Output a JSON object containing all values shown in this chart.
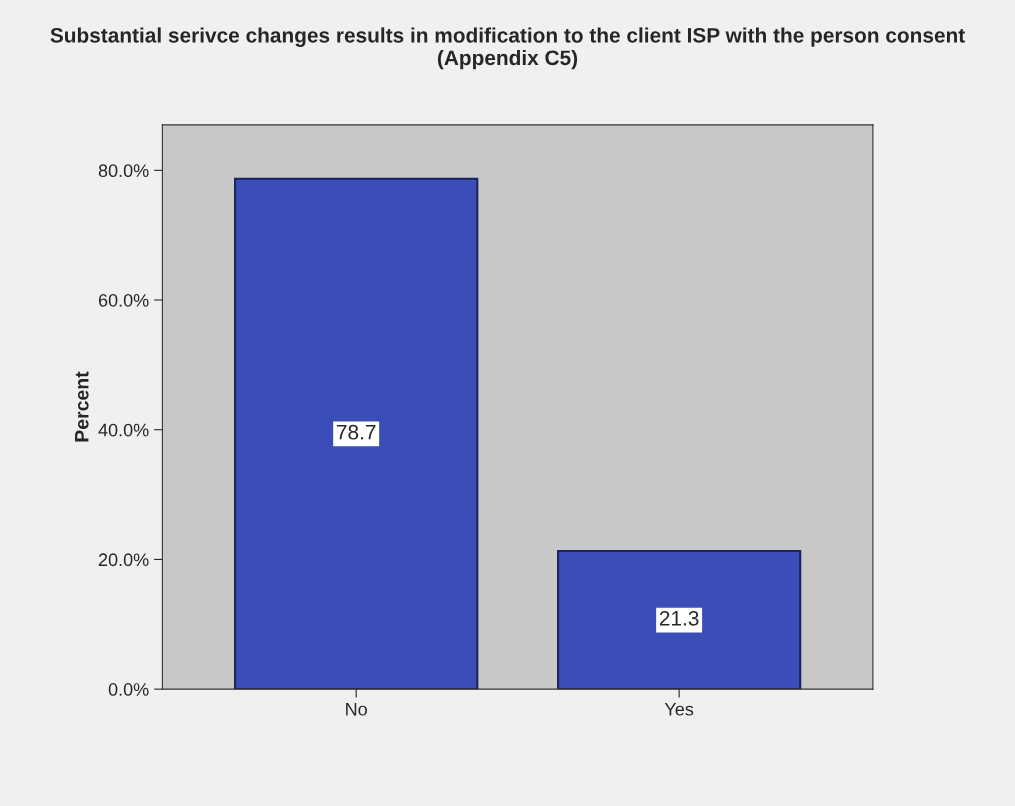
{
  "chart_data": {
    "type": "bar",
    "title": "Substantial serivce changes results in modification to the client ISP with the person consent (Appendix C5)",
    "ylabel": "Percent",
    "categories": [
      "No",
      "Yes"
    ],
    "values": [
      78.7,
      21.3
    ],
    "color": "#3a4db8",
    "data_labels": true,
    "ylim": [
      0,
      87
    ],
    "yticks": [
      {
        "value": 0,
        "label": "0.0%"
      },
      {
        "value": 20,
        "label": "20.0%"
      },
      {
        "value": 40,
        "label": "40.0%"
      },
      {
        "value": 60,
        "label": "60.0%"
      },
      {
        "value": 80,
        "label": "80.0%"
      }
    ]
  }
}
